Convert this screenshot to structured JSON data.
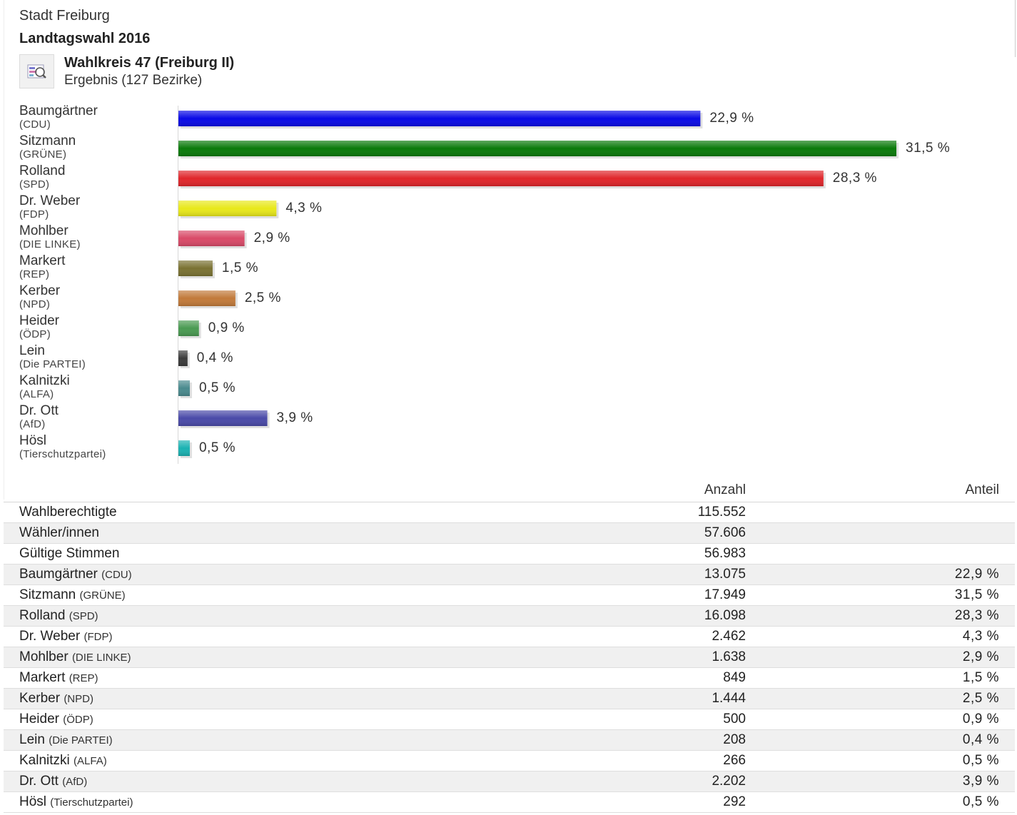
{
  "header": {
    "city": "Stadt Freiburg",
    "election": "Landtagswahl 2016",
    "district": "Wahlkreis 47 (Freiburg II)",
    "result": "Ergebnis (127 Bezirke)",
    "icon": "chart-magnifier-icon"
  },
  "chart_data": {
    "type": "bar",
    "orientation": "horizontal",
    "title": "",
    "xlabel": "",
    "ylabel": "",
    "xlim": [
      0,
      31.5
    ],
    "grid": false,
    "categories": [
      {
        "name": "Baumgärtner",
        "party": "(CDU)"
      },
      {
        "name": "Sitzmann",
        "party": "(GRÜNE)"
      },
      {
        "name": "Rolland",
        "party": "(SPD)"
      },
      {
        "name": "Dr. Weber",
        "party": "(FDP)"
      },
      {
        "name": "Mohlber",
        "party": "(DIE LINKE)"
      },
      {
        "name": "Markert",
        "party": "(REP)"
      },
      {
        "name": "Kerber",
        "party": "(NPD)"
      },
      {
        "name": "Heider",
        "party": "(ÖDP)"
      },
      {
        "name": "Lein",
        "party": "(Die PARTEI)"
      },
      {
        "name": "Kalnitzki",
        "party": "(ALFA)"
      },
      {
        "name": "Dr. Ott",
        "party": "(AfD)"
      },
      {
        "name": "Hösl",
        "party": "(Tierschutzpartei)"
      }
    ],
    "values": [
      22.9,
      31.5,
      28.3,
      4.3,
      2.9,
      1.5,
      2.5,
      0.9,
      0.4,
      0.5,
      3.9,
      0.5
    ],
    "labels": [
      "22,9 %",
      "31,5 %",
      "28,3 %",
      "4,3 %",
      "2,9 %",
      "1,5 %",
      "2,5 %",
      "0,9 %",
      "0,4 %",
      "0,5 %",
      "3,9 %",
      "0,5 %"
    ],
    "colors": [
      "#0a0ae6",
      "#0a7a0a",
      "#e0262b",
      "#e8e81a",
      "#d94a68",
      "#7a7232",
      "#c27a3a",
      "#4a9a52",
      "#3a3a3a",
      "#4a8a8e",
      "#4a4aa8",
      "#1ab2b2"
    ]
  },
  "table": {
    "headers": {
      "count": "Anzahl",
      "share": "Anteil"
    },
    "rows": [
      {
        "name": "Wahlberechtigte",
        "party": "",
        "count": "115.552",
        "share": ""
      },
      {
        "name": "Wähler/innen",
        "party": "",
        "count": "57.606",
        "share": ""
      },
      {
        "name": "Gültige Stimmen",
        "party": "",
        "count": "56.983",
        "share": ""
      },
      {
        "name": "Baumgärtner",
        "party": "(CDU)",
        "count": "13.075",
        "share": "22,9 %"
      },
      {
        "name": "Sitzmann",
        "party": "(GRÜNE)",
        "count": "17.949",
        "share": "31,5 %"
      },
      {
        "name": "Rolland",
        "party": "(SPD)",
        "count": "16.098",
        "share": "28,3 %"
      },
      {
        "name": "Dr. Weber",
        "party": "(FDP)",
        "count": "2.462",
        "share": "4,3 %"
      },
      {
        "name": "Mohlber",
        "party": "(DIE LINKE)",
        "count": "1.638",
        "share": "2,9 %"
      },
      {
        "name": "Markert",
        "party": "(REP)",
        "count": "849",
        "share": "1,5 %"
      },
      {
        "name": "Kerber",
        "party": "(NPD)",
        "count": "1.444",
        "share": "2,5 %"
      },
      {
        "name": "Heider",
        "party": "(ÖDP)",
        "count": "500",
        "share": "0,9 %"
      },
      {
        "name": "Lein",
        "party": "(Die PARTEI)",
        "count": "208",
        "share": "0,4 %"
      },
      {
        "name": "Kalnitzki",
        "party": "(ALFA)",
        "count": "266",
        "share": "0,5 %"
      },
      {
        "name": "Dr. Ott",
        "party": "(AfD)",
        "count": "2.202",
        "share": "3,9 %"
      },
      {
        "name": "Hösl",
        "party": "(Tierschutzpartei)",
        "count": "292",
        "share": "0,5 %"
      }
    ]
  }
}
